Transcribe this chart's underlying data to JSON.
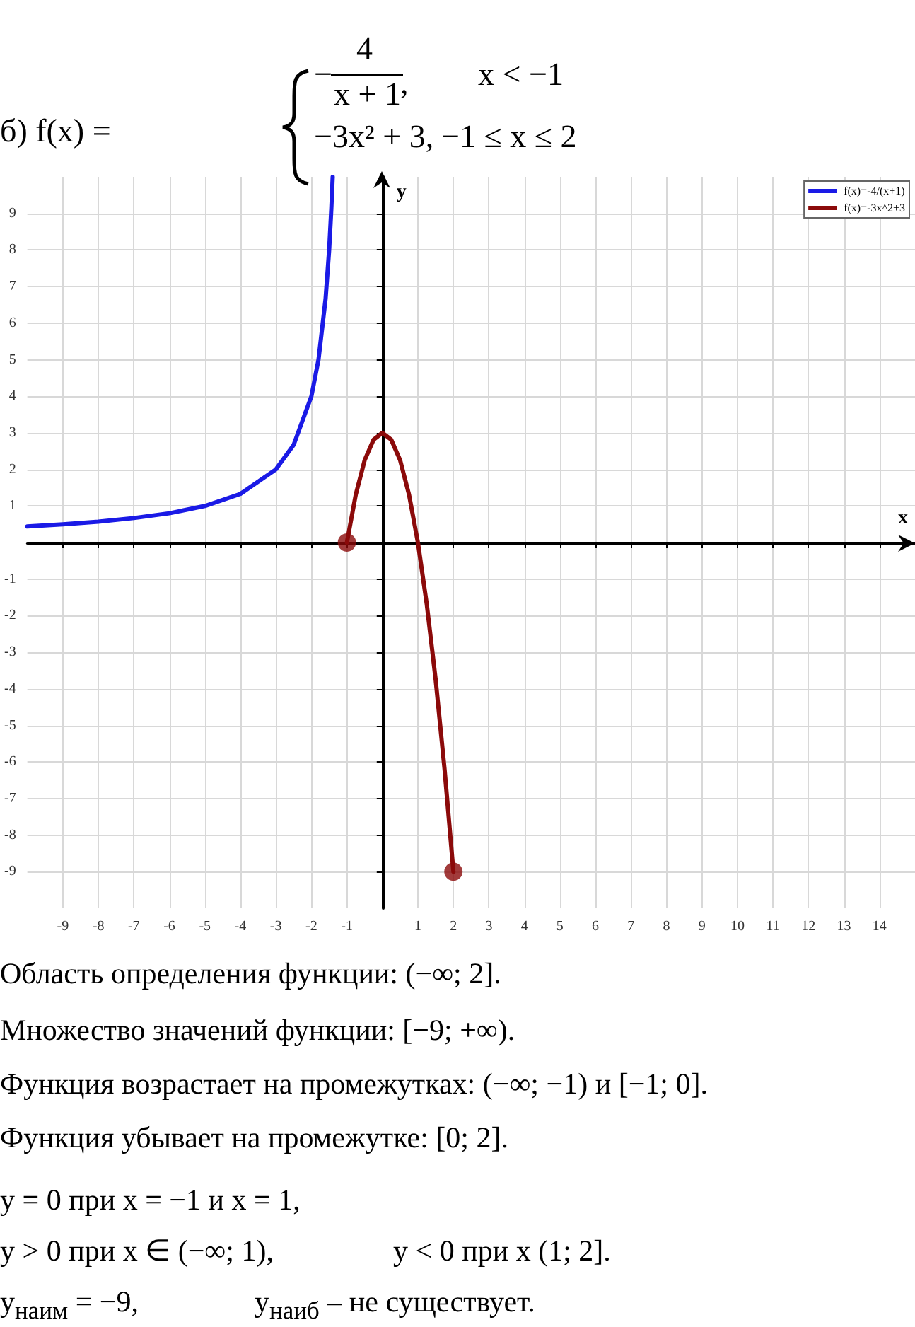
{
  "chart_data": {
    "type": "line",
    "title": "б) f(x) =",
    "xlabel": "x",
    "ylabel": "y",
    "annotations": [
      "−",
      "4",
      "x + 1",
      ",",
      "x < −1",
      "−3x² + 3,",
      "−1 ≤ x ≤ 2",
      "Область определения функции: (−∞; 2].",
      "Множество значений функции: [−9; +∞).",
      "Функция возрастает на промежутках: (−∞; −1) и [−1; 0].",
      "Функция убывает на промежутке: [0; 2].",
      "y = 0 при x = −1 и x = 1,",
      "y > 0 при x ∈ (−∞; 1),",
      "y < 0 при x (1; 2].",
      "y$_{наим}$ = −9,",
      "y$_{наиб}$ – не существует."
    ],
    "series": [
      {
        "name": "f(x)=-4/(x+1)",
        "type": "line",
        "color": "#1a1ae6",
        "x": [
          -10,
          -9,
          -8,
          -7,
          -6,
          -5,
          -4,
          -3,
          -2.5,
          -2,
          -1.8,
          -1.6,
          -1.5,
          -1.44,
          -1.4
        ],
        "values": [
          0.44,
          0.5,
          0.57,
          0.67,
          0.8,
          1,
          1.33,
          2,
          2.67,
          4,
          5,
          6.67,
          8,
          9.1,
          10
        ]
      },
      {
        "name": "f(x)=-3x^2+3",
        "type": "line",
        "color": "#8b0a0a",
        "x": [
          -1,
          -0.75,
          -0.5,
          -0.25,
          0,
          0.25,
          0.5,
          0.75,
          1,
          1.25,
          1.5,
          1.75,
          2
        ],
        "values": [
          0,
          1.31,
          2.25,
          2.81,
          3,
          2.81,
          2.25,
          1.31,
          0,
          -1.69,
          -3.75,
          -6.19,
          -9
        ]
      },
      {
        "type": "scatter",
        "color": "#8b0a0a",
        "marker": "circle",
        "x": [
          -1,
          2
        ],
        "values": [
          0,
          -9
        ]
      }
    ],
    "xlim": [
      -10,
      15
    ],
    "ylim": [
      -10,
      10
    ],
    "xticks": [
      -9,
      -8,
      -7,
      -6,
      -5,
      -4,
      -3,
      -2,
      -1,
      {
        "value": 0,
        "label": null
      },
      1,
      2,
      3,
      4,
      5,
      6,
      7,
      8,
      9,
      10,
      11,
      12,
      13,
      14
    ],
    "yticks": [
      -9,
      -8,
      -7,
      -6,
      -5,
      -4,
      -3,
      -2,
      -1,
      {
        "value": 0,
        "label": null
      },
      1,
      2,
      3,
      4,
      5,
      6,
      7,
      8,
      9
    ],
    "grid": true,
    "legend": "top right",
    "marker": "none",
    "line_style": "solid"
  }
}
